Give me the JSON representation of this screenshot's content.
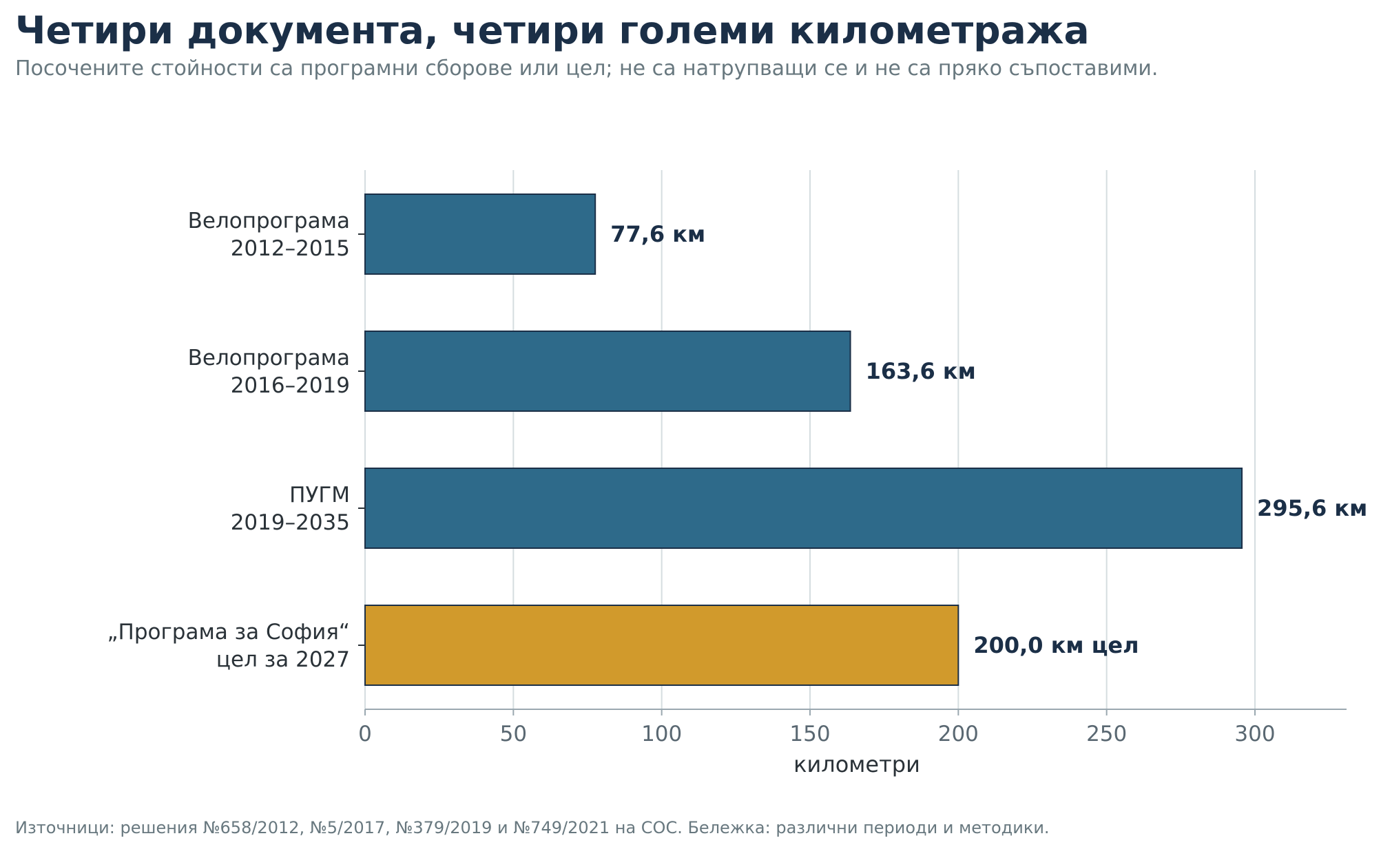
{
  "chart_data": {
    "type": "bar",
    "orientation": "horizontal",
    "title": "Четири документа, четири големи километража",
    "subtitle": "Посочените стойности са програмни сборове или цел; не са натрупващи се и не са пряко съпоставими.",
    "footer": "Източници: решения №658/2012, №5/2017, №379/2019 и №749/2021 на СОС. Бележка: различни периоди и методики.",
    "xlabel": "километри",
    "ylabel": "",
    "xlim": [
      0,
      330
    ],
    "xticks": [
      0,
      50,
      100,
      150,
      200,
      250,
      300
    ],
    "grid": true,
    "bars": [
      {
        "label_lines": [
          "Велопрограма",
          "2012–2015"
        ],
        "value": 77.6,
        "value_label": "77,6 км",
        "color": "#2e6a8a"
      },
      {
        "label_lines": [
          "Велопрограма",
          "2016–2019"
        ],
        "value": 163.6,
        "value_label": "163,6 км",
        "color": "#2e6a8a"
      },
      {
        "label_lines": [
          "ПУГМ",
          "2019–2035"
        ],
        "value": 295.6,
        "value_label": "295,6 км",
        "color": "#2e6a8a"
      },
      {
        "label_lines": [
          "„Програма за София“",
          "цел за 2027"
        ],
        "value": 200.0,
        "value_label": "200,0 км  цел",
        "color": "#d19a2c"
      }
    ],
    "colors": {
      "program": "#2e6a8a",
      "target": "#d19a2c",
      "bar_edge": "#1b2f47",
      "value_text": "#1b2f47",
      "grid": "#d5dde0",
      "axis": "#9aa8b0",
      "tick_text": "#5a6872",
      "category_text": "#2a3238"
    }
  }
}
